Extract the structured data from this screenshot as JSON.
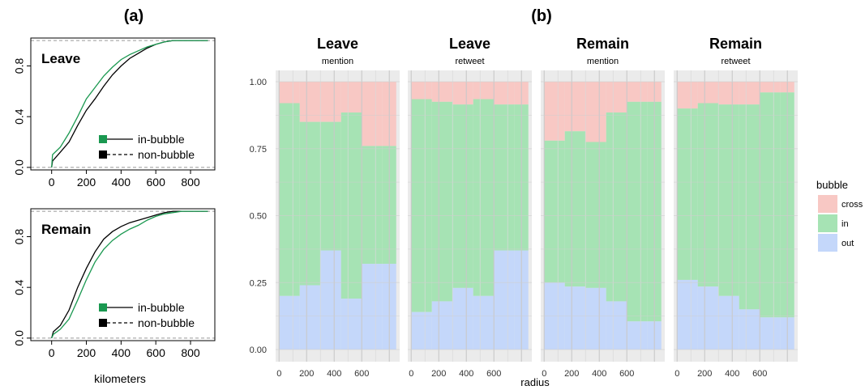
{
  "panel_labels": {
    "a": "(a)",
    "b": "(b)"
  },
  "legend": {
    "title": "bubble",
    "items": [
      {
        "label": "cross",
        "color": "#f8c8c4"
      },
      {
        "label": "in",
        "color": "#a6e3b4"
      },
      {
        "label": "out",
        "color": "#c4d7fa"
      }
    ]
  },
  "colors": {
    "in_bubble": "#1a9850",
    "non_bubble": "#000000",
    "cross": "#f8c8c4",
    "in": "#a6e3b4",
    "out": "#c4d7fa",
    "facet_bg": "#ebebeb",
    "grid": "#d3d3d3"
  },
  "chart_data": [
    {
      "type": "line",
      "title": "Leave",
      "xlabel": "",
      "ylabel": "",
      "xlim": [
        -120,
        940
      ],
      "ylim": [
        -0.02,
        1.02
      ],
      "x_ticks": [
        0,
        200,
        400,
        600,
        800
      ],
      "y_ticks": [
        0.0,
        0.4,
        0.8
      ],
      "y_tick_labels": [
        "0.0",
        "0.4",
        "0.8"
      ],
      "legend_items": [
        {
          "label": "in-bubble",
          "style": "solid",
          "color": "#1a9850"
        },
        {
          "label": "non-bubble",
          "style": "dashed",
          "color": "#000000"
        }
      ],
      "series": [
        {
          "name": "in-bubble",
          "x": [
            0,
            5,
            50,
            100,
            150,
            200,
            250,
            300,
            350,
            400,
            450,
            500,
            550,
            600,
            650,
            700,
            750,
            800,
            850,
            900
          ],
          "y": [
            0,
            0.1,
            0.16,
            0.27,
            0.4,
            0.54,
            0.63,
            0.72,
            0.79,
            0.85,
            0.89,
            0.92,
            0.95,
            0.97,
            0.99,
            1.0,
            1.0,
            1.0,
            1.0,
            1.0
          ]
        },
        {
          "name": "non-bubble",
          "x": [
            0,
            5,
            50,
            100,
            150,
            200,
            250,
            300,
            350,
            400,
            450,
            500,
            550,
            600,
            650,
            700,
            750,
            800,
            850,
            900
          ],
          "y": [
            0,
            0.05,
            0.12,
            0.2,
            0.33,
            0.45,
            0.54,
            0.64,
            0.73,
            0.8,
            0.86,
            0.9,
            0.94,
            0.97,
            0.99,
            1.0,
            1.0,
            1.0,
            1.0,
            1.0
          ]
        }
      ]
    },
    {
      "type": "line",
      "title": "Remain",
      "xlabel": "kilometers",
      "ylabel": "",
      "xlim": [
        -120,
        940
      ],
      "ylim": [
        -0.02,
        1.02
      ],
      "x_ticks": [
        0,
        200,
        400,
        600,
        800
      ],
      "y_ticks": [
        0.0,
        0.4,
        0.8
      ],
      "y_tick_labels": [
        "0.0",
        "0.4",
        "0.8"
      ],
      "legend_items": [
        {
          "label": "in-bubble",
          "style": "solid",
          "color": "#1a9850"
        },
        {
          "label": "non-bubble",
          "style": "dashed",
          "color": "#000000"
        }
      ],
      "series": [
        {
          "name": "in-bubble",
          "x": [
            0,
            10,
            50,
            100,
            150,
            200,
            250,
            300,
            350,
            400,
            450,
            500,
            550,
            600,
            650,
            700,
            750,
            800,
            850,
            900
          ],
          "y": [
            0,
            0.03,
            0.07,
            0.15,
            0.3,
            0.46,
            0.6,
            0.7,
            0.77,
            0.82,
            0.86,
            0.89,
            0.93,
            0.96,
            0.98,
            0.99,
            1.0,
            1.0,
            1.0,
            1.0
          ]
        },
        {
          "name": "non-bubble",
          "x": [
            0,
            10,
            50,
            100,
            150,
            200,
            250,
            300,
            350,
            400,
            450,
            500,
            550,
            600,
            650,
            700,
            750,
            800,
            850,
            900
          ],
          "y": [
            0,
            0.05,
            0.1,
            0.22,
            0.4,
            0.55,
            0.68,
            0.78,
            0.84,
            0.88,
            0.91,
            0.93,
            0.95,
            0.97,
            0.99,
            1.0,
            1.0,
            1.0,
            1.0,
            1.0
          ]
        }
      ]
    },
    {
      "type": "area",
      "stacked": true,
      "xlabel": "radius",
      "ylabel": "",
      "ylim": [
        0,
        1
      ],
      "y_ticks": [
        0,
        0.25,
        0.5,
        0.75,
        1.0
      ],
      "y_tick_labels": [
        "0.00",
        "0.25",
        "0.50",
        "0.75",
        "1.00"
      ],
      "x_ticks": [
        0,
        200,
        400,
        600
      ],
      "xlim": [
        -25,
        875
      ],
      "bins": [
        [
          0,
          150
        ],
        [
          150,
          300
        ],
        [
          300,
          450
        ],
        [
          450,
          600
        ],
        [
          600,
          750
        ],
        [
          750,
          850
        ]
      ],
      "facets": [
        {
          "title": "Leave",
          "subtitle": "mention",
          "out": [
            0.2,
            0.24,
            0.37,
            0.19,
            0.32,
            0.32
          ],
          "in_top": [
            0.92,
            0.85,
            0.85,
            0.885,
            0.76,
            0.76
          ]
        },
        {
          "title": "Leave",
          "subtitle": "retweet",
          "out": [
            0.14,
            0.18,
            0.23,
            0.2,
            0.37,
            0.37
          ],
          "in_top": [
            0.935,
            0.925,
            0.915,
            0.935,
            0.915,
            0.915
          ]
        },
        {
          "title": "Remain",
          "subtitle": "mention",
          "out": [
            0.25,
            0.235,
            0.23,
            0.18,
            0.105,
            0.105
          ],
          "in_top": [
            0.78,
            0.815,
            0.775,
            0.885,
            0.925,
            0.925
          ]
        },
        {
          "title": "Remain",
          "subtitle": "retweet",
          "out": [
            0.26,
            0.235,
            0.2,
            0.15,
            0.12,
            0.12
          ],
          "in_top": [
            0.9,
            0.92,
            0.915,
            0.915,
            0.96,
            0.96
          ]
        }
      ]
    }
  ]
}
